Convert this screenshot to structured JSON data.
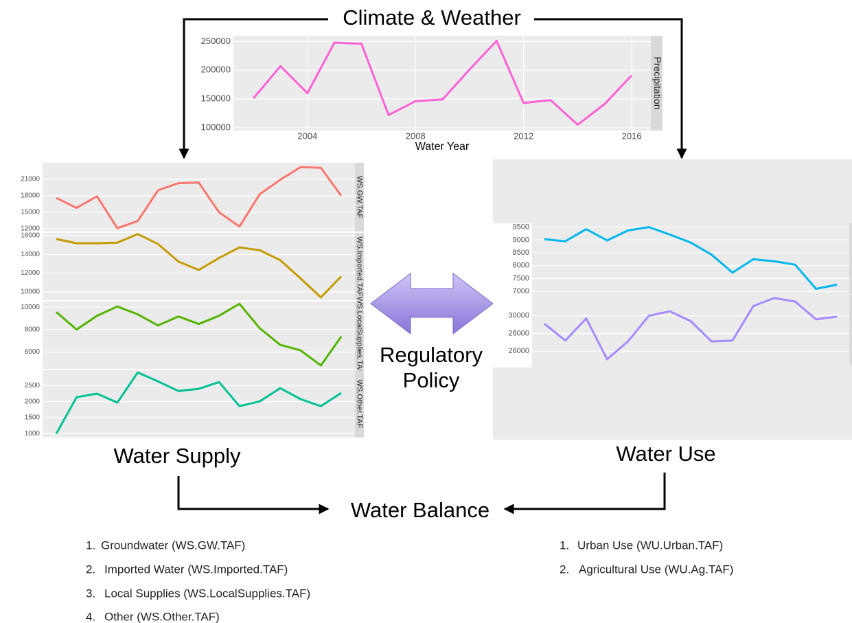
{
  "labels": {
    "climate": "Climate & Weather",
    "supply": "Water Supply",
    "use": "Water Use",
    "balance": "Water Balance",
    "policy": [
      "Regulatory",
      "Policy"
    ]
  },
  "supply_list": [
    {
      "number": "1.",
      "text": "Groundwater (WS.GW.TAF)"
    },
    {
      "number": "2.",
      "text": "Imported Water (WS.Imported.TAF)"
    },
    {
      "number": "3.",
      "text": "Local Supplies (WS.LocalSupplies.TAF)"
    },
    {
      "number": "4.",
      "text": "Other (WS.Other.TAF)"
    }
  ],
  "use_list": [
    {
      "number": "1.",
      "text": "Urban Use (WU.Urban.TAF)"
    },
    {
      "number": "2.",
      "text": "Agricultural Use (WU.Ag.TAF)"
    }
  ],
  "chart_data": [
    {
      "type": "line",
      "x": [
        2002,
        2003,
        2004,
        2005,
        2006,
        2007,
        2008,
        2009,
        2010,
        2011,
        2012,
        2013,
        2014,
        2015,
        2016
      ],
      "xlim": [
        2001.26,
        2016.71
      ],
      "xticks": [
        2004,
        2008,
        2012,
        2016
      ],
      "xlabel": "Water Year",
      "ylim": [
        95000,
        260000
      ],
      "yticks": [
        100000,
        150000,
        200000,
        250000
      ],
      "grid": true,
      "series": [
        {
          "name": "Precipitation",
          "color": "#fb61d7",
          "values": [
            151000,
            207000,
            160000,
            248000,
            246000,
            122000,
            146000,
            149000,
            201000,
            251000,
            143000,
            148000,
            105000,
            141000,
            191000
          ]
        }
      ]
    },
    {
      "type": "line",
      "ylim": [
        11500,
        24000
      ],
      "yticks": [
        12000,
        15000,
        18000,
        21000
      ],
      "grid": true,
      "series": [
        {
          "name": "WS.GW.TAF",
          "color": "#f8766d",
          "values": [
            17600,
            15800,
            17900,
            12100,
            13400,
            19000,
            20300,
            20400,
            15000,
            12400,
            18300,
            20900,
            23200,
            23100,
            18000
          ]
        }
      ]
    },
    {
      "type": "line",
      "ylim": [
        9100,
        16300
      ],
      "yticks": [
        10000,
        12000,
        14000,
        16000
      ],
      "grid": true,
      "series": [
        {
          "name": "WS.Imported.TAF",
          "color": "#c49a00",
          "values": [
            15640,
            15190,
            15190,
            15260,
            16170,
            15110,
            13230,
            12330,
            13610,
            14740,
            14440,
            13380,
            11430,
            9400,
            11650
          ]
        }
      ]
    },
    {
      "type": "line",
      "ylim": [
        4500,
        10500
      ],
      "yticks": [
        6000,
        8000,
        10000
      ],
      "grid": true,
      "series": [
        {
          "name": "WS.LocalSupplies.TAF",
          "color": "#53b400",
          "values": [
            9570,
            8000,
            9230,
            10060,
            9360,
            8370,
            9170,
            8500,
            9230,
            10300,
            8120,
            6650,
            6150,
            4800,
            7380
          ]
        }
      ]
    },
    {
      "type": "line",
      "ylim": [
        880,
        2980
      ],
      "yticks": [
        1000,
        1500,
        2000,
        2500
      ],
      "grid": true,
      "series": [
        {
          "name": "WS.Other.TAF",
          "color": "#00c094",
          "values": [
            1000,
            2140,
            2250,
            1970,
            2910,
            2630,
            2330,
            2400,
            2610,
            1860,
            2010,
            2420,
            2080,
            1860,
            2270
          ]
        }
      ]
    },
    {
      "type": "line",
      "ylim": [
        6900,
        9650
      ],
      "yticks": [
        7000,
        7500,
        8000,
        8500,
        9000,
        9500
      ],
      "grid": true,
      "series": [
        {
          "color": "#00b6eb",
          "values": [
            9030,
            8950,
            9420,
            8980,
            9370,
            9500,
            9210,
            8900,
            8430,
            7730,
            8250,
            8170,
            8040,
            7100,
            7260
          ]
        }
      ]
    },
    {
      "type": "line",
      "ylim": [
        24400,
        32300
      ],
      "yticks": [
        26000,
        28000,
        30000
      ],
      "grid": true,
      "series": [
        {
          "color": "#a58aff",
          "values": [
            29100,
            27200,
            29700,
            25100,
            27100,
            30000,
            30500,
            29400,
            27100,
            27200,
            31100,
            32000,
            31600,
            29600,
            29900
          ]
        }
      ]
    }
  ]
}
